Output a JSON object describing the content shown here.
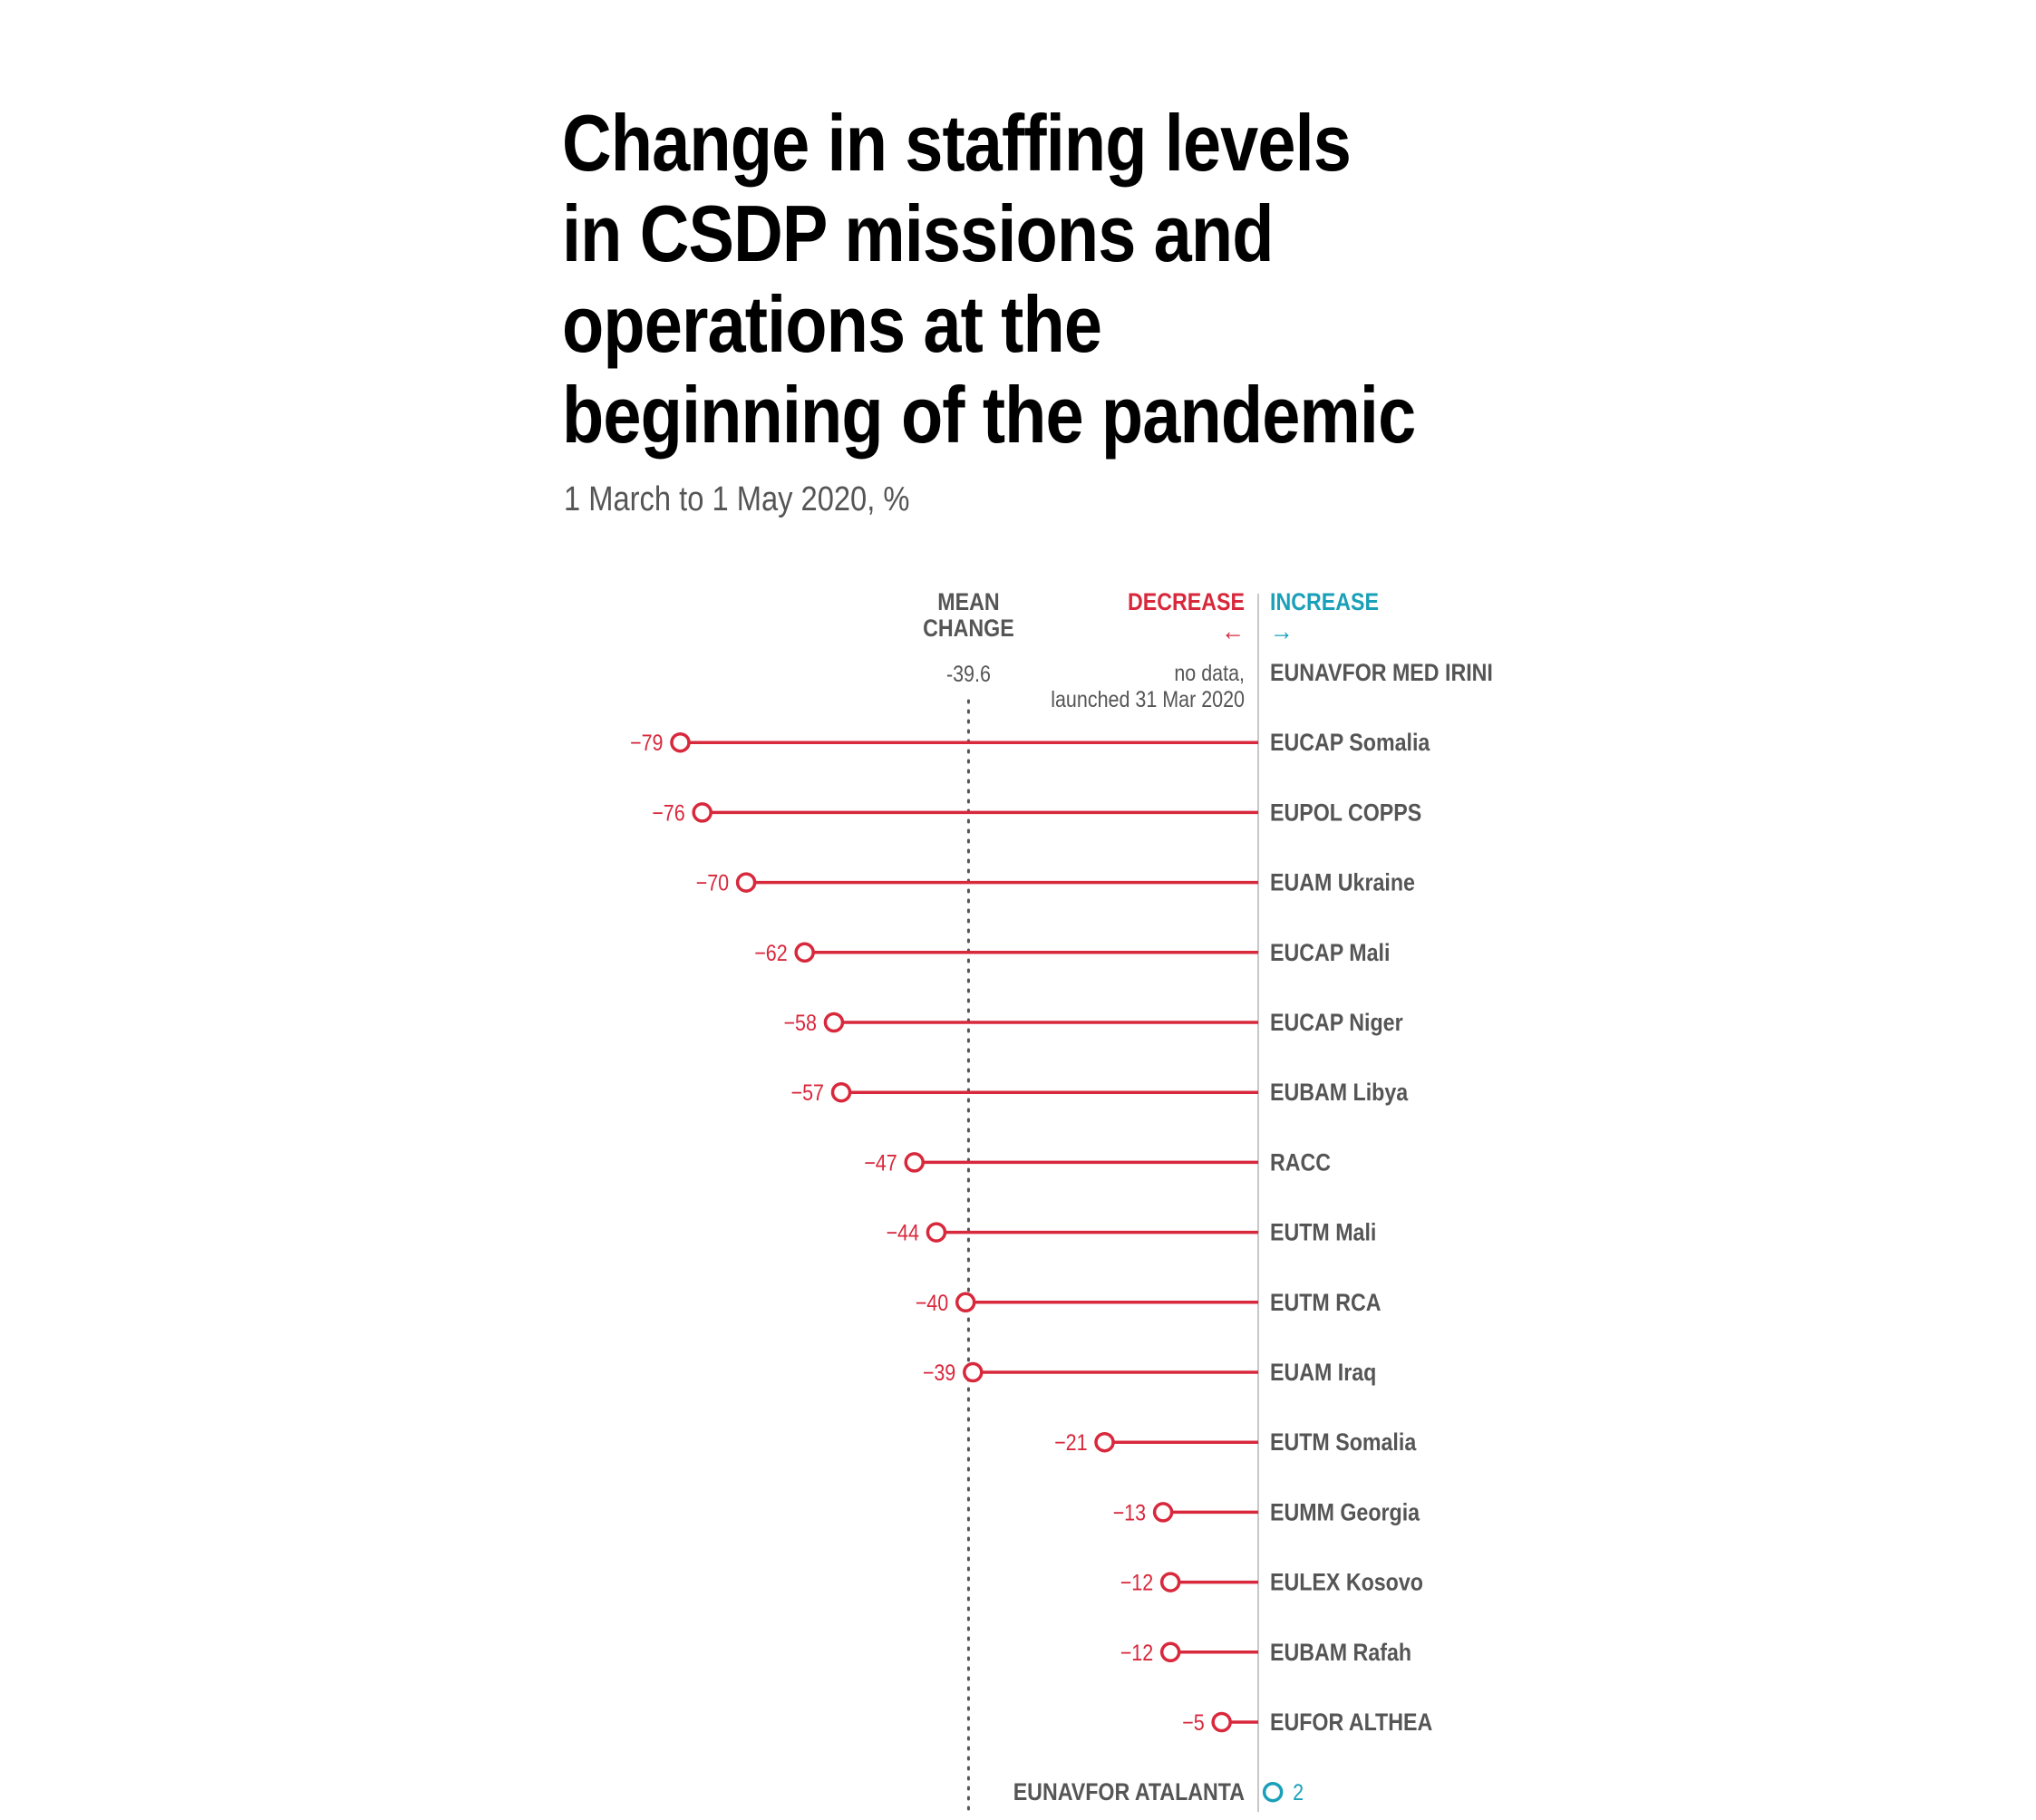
{
  "title": "Change in staffing levels in CSDP missions and operations at the beginning of the pandemic",
  "subtitle": "1 March to 1 May 2020, %",
  "colors": {
    "decrease": "#d8283c",
    "increase": "#1aa0b8",
    "label": "#555555",
    "axis": "#c8c8c8",
    "mean": "#555555"
  },
  "chart_data": {
    "type": "lollipop",
    "title": "Change in staffing levels in CSDP missions and operations at the beginning of the pandemic",
    "subtitle": "1 March to 1 May 2020, %",
    "headers": {
      "mean_line1": "MEAN",
      "mean_line2": "CHANGE",
      "decrease": "DECREASE",
      "increase": "INCREASE",
      "decrease_arrow": "←",
      "increase_arrow": "→"
    },
    "mean": {
      "value": -39.6,
      "label": "-39.6"
    },
    "missions": [
      {
        "name": "EUNAVFOR MED IRINI",
        "value": null,
        "note_line1": "no data,",
        "note_line2": "launched 31 Mar 2020"
      },
      {
        "name": "EUCAP Somalia",
        "value": -79,
        "label": "−79"
      },
      {
        "name": "EUPOL COPPS",
        "value": -76,
        "label": "−76"
      },
      {
        "name": "EUAM Ukraine",
        "value": -70,
        "label": "−70"
      },
      {
        "name": "EUCAP Mali",
        "value": -62,
        "label": "−62"
      },
      {
        "name": "EUCAP Niger",
        "value": -58,
        "label": "−58"
      },
      {
        "name": "EUBAM Libya",
        "value": -57,
        "label": "−57"
      },
      {
        "name": "RACC",
        "value": -47,
        "label": "−47"
      },
      {
        "name": "EUTM Mali",
        "value": -44,
        "label": "−44"
      },
      {
        "name": "EUTM RCA",
        "value": -40,
        "label": "−40"
      },
      {
        "name": "EUAM Iraq",
        "value": -39,
        "label": "−39"
      },
      {
        "name": "EUTM Somalia",
        "value": -21,
        "label": "−21"
      },
      {
        "name": "EUMM Georgia",
        "value": -13,
        "label": "−13"
      },
      {
        "name": "EULEX Kosovo",
        "value": -12,
        "label": "−12"
      },
      {
        "name": "EUBAM Rafah",
        "value": -12,
        "label": "−12"
      },
      {
        "name": "EUFOR  ALTHEA",
        "value": -5,
        "label": "−5"
      },
      {
        "name": "EUNAVFOR ATALANTA",
        "value": 2,
        "label": "2"
      }
    ]
  }
}
